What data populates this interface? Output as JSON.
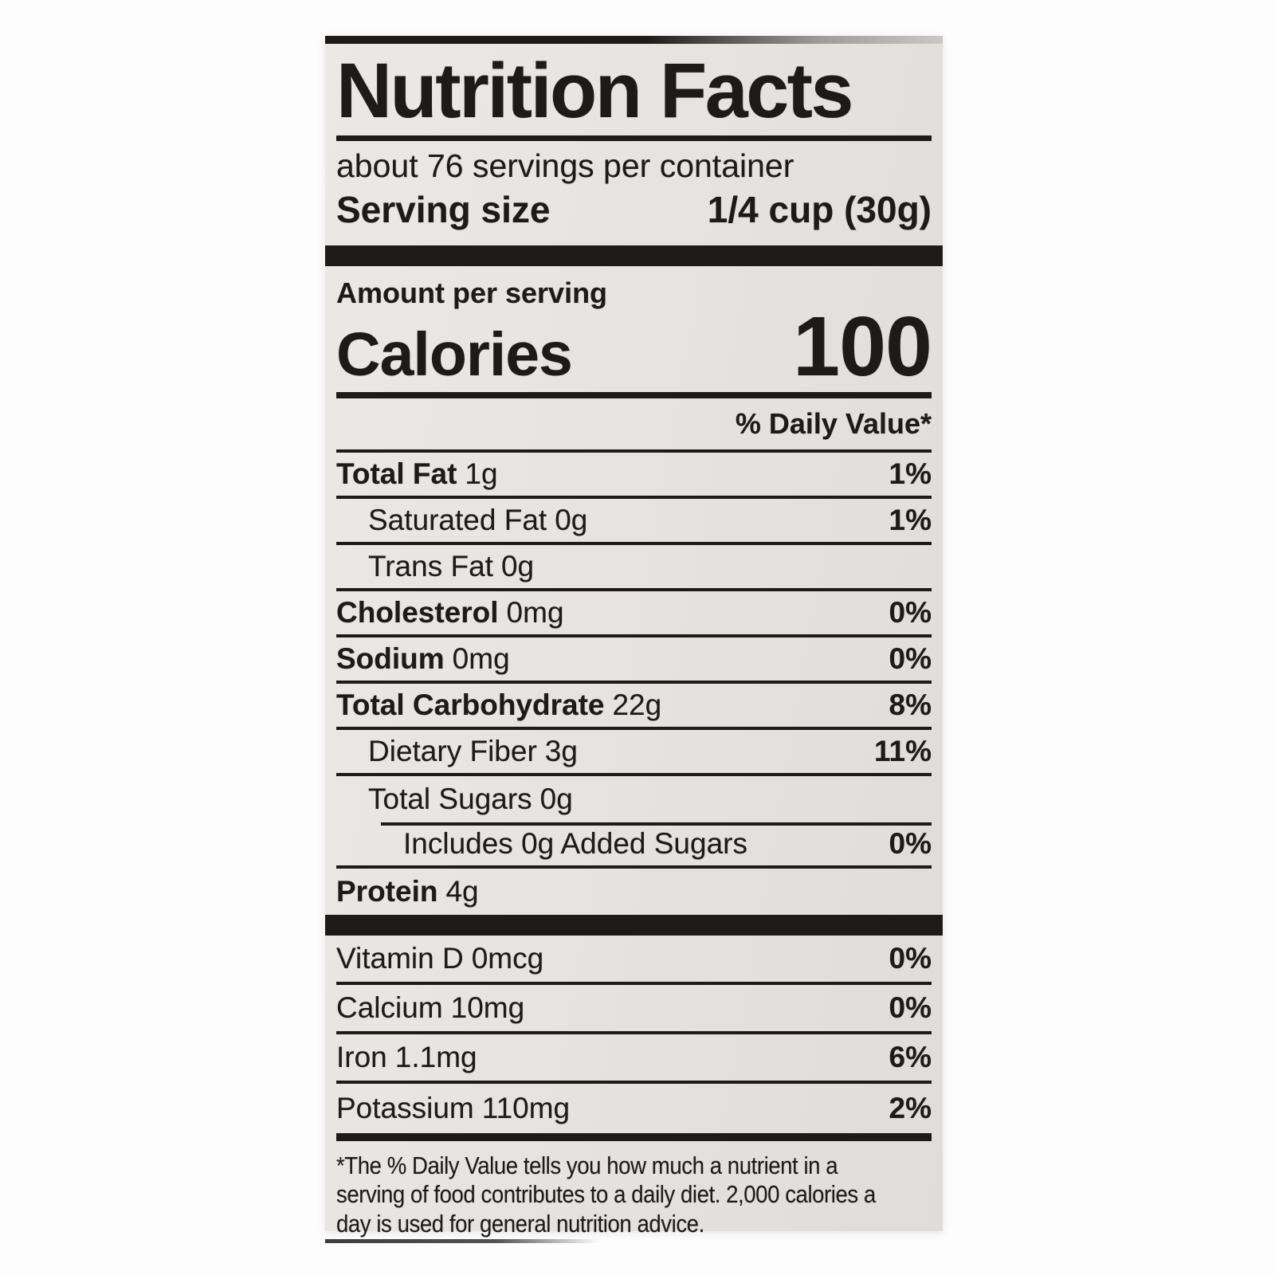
{
  "colors": {
    "paper": "#e7e5e1",
    "ink": "#1d1b19"
  },
  "label": {
    "title": "Nutrition Facts",
    "servings_per_container": "about 76 servings per container",
    "serving_size_label": "Serving size",
    "serving_size_value": "1/4 cup (30g)",
    "amount_per_serving": "Amount per serving",
    "calories_label": "Calories",
    "calories_value": "100",
    "daily_value_header": "% Daily Value*",
    "nutrients": [
      {
        "name": "Total Fat",
        "amount": "1g",
        "dv": "1%",
        "indent": 0,
        "bold": true
      },
      {
        "name": "Saturated Fat",
        "amount": "0g",
        "dv": "1%",
        "indent": 1,
        "bold": false
      },
      {
        "name": "Trans Fat",
        "amount": "0g",
        "dv": "",
        "indent": 1,
        "bold": false
      },
      {
        "name": "Cholesterol",
        "amount": "0mg",
        "dv": "0%",
        "indent": 0,
        "bold": true
      },
      {
        "name": "Sodium",
        "amount": "0mg",
        "dv": "0%",
        "indent": 0,
        "bold": true
      },
      {
        "name": "Total Carbohydrate",
        "amount": "22g",
        "dv": "8%",
        "indent": 0,
        "bold": true
      },
      {
        "name": "Dietary Fiber",
        "amount": "3g",
        "dv": "11%",
        "indent": 1,
        "bold": false
      },
      {
        "name": "Total Sugars",
        "amount": "0g",
        "dv": "",
        "indent": 1,
        "bold": false,
        "rule_below": false
      },
      {
        "name": "Includes 0g Added Sugars",
        "amount": "",
        "dv": "0%",
        "indent": 2,
        "bold": false,
        "partial_rule_above": true
      },
      {
        "name": "Protein",
        "amount": "4g",
        "dv": "",
        "indent": 0,
        "bold": true,
        "rule_below": false
      }
    ],
    "micronutrients": [
      {
        "name": "Vitamin D",
        "amount": "0mcg",
        "dv": "0%"
      },
      {
        "name": "Calcium",
        "amount": "10mg",
        "dv": "0%"
      },
      {
        "name": "Iron",
        "amount": "1.1mg",
        "dv": "6%"
      },
      {
        "name": "Potassium",
        "amount": "110mg",
        "dv": "2%"
      }
    ],
    "footnote": "*The % Daily Value tells you how much a nutrient in a\nserving of food contributes to a daily diet. 2,000 calories a\nday is used for general nutrition advice."
  }
}
